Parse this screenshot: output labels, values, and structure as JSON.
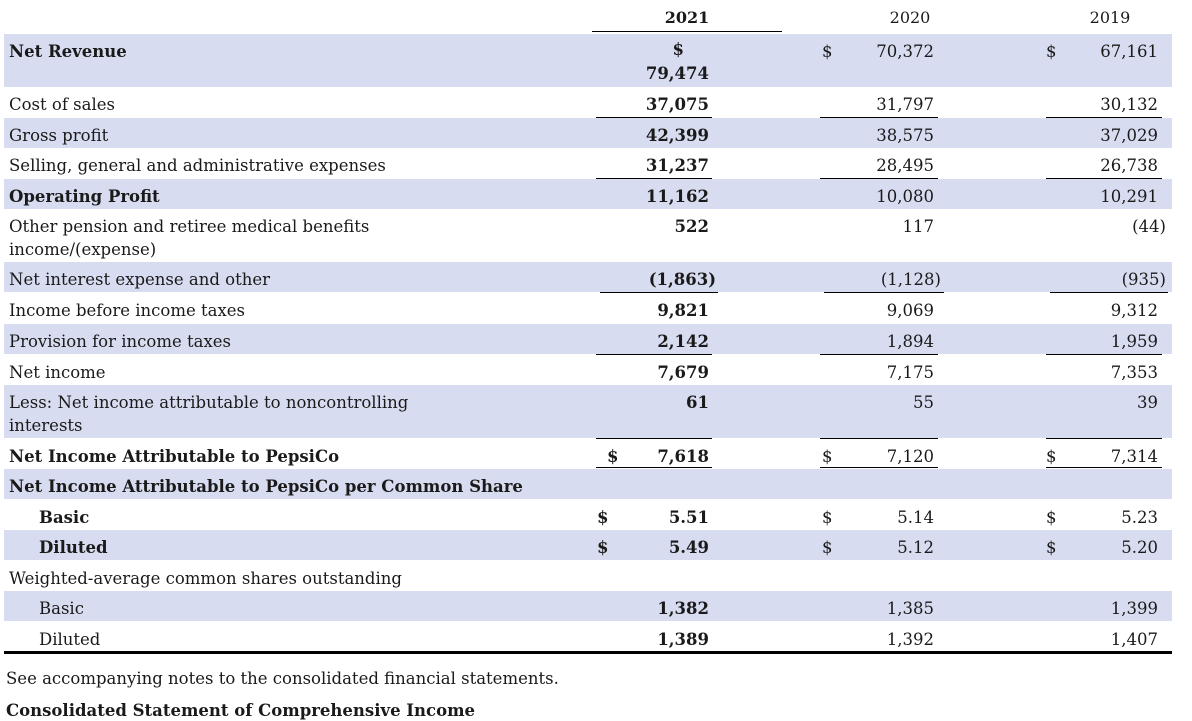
{
  "headers": {
    "y2021": "2021",
    "y2020": "2020",
    "y2019": "2019"
  },
  "rows": [
    {
      "label": "Net Revenue",
      "v2021": "79,474",
      "v2020": "70,372",
      "v2019": "67,161",
      "dollar": "$"
    },
    {
      "label": "Cost of sales",
      "v2021": "37,075",
      "v2020": "31,797",
      "v2019": "30,132"
    },
    {
      "label": "Gross profit",
      "v2021": "42,399",
      "v2020": "38,575",
      "v2019": "37,029"
    },
    {
      "label": "Selling, general and administrative expenses",
      "v2021": "31,237",
      "v2020": "28,495",
      "v2019": "26,738"
    },
    {
      "label": "Operating Profit",
      "v2021": "11,162",
      "v2020": "10,080",
      "v2019": "10,291"
    },
    {
      "label": "Other pension and retiree medical benefits income/(expense)",
      "v2021": "522",
      "v2020": "117",
      "v2019": "(44)"
    },
    {
      "label": "Net interest expense and other",
      "v2021": "(1,863)",
      "v2020": "(1,128)",
      "v2019": "(935)"
    },
    {
      "label": "Income before income taxes",
      "v2021": "9,821",
      "v2020": "9,069",
      "v2019": "9,312"
    },
    {
      "label": "Provision for income taxes",
      "v2021": "2,142",
      "v2020": "1,894",
      "v2019": "1,959"
    },
    {
      "label": "Net income",
      "v2021": "7,679",
      "v2020": "7,175",
      "v2019": "7,353"
    },
    {
      "label": "Less: Net income attributable to noncontrolling interests",
      "v2021": "61",
      "v2020": "55",
      "v2019": "39"
    },
    {
      "label": "Net Income Attributable to PepsiCo",
      "v2021": "7,618",
      "v2020": "7,120",
      "v2019": "7,314",
      "dollar": "$"
    },
    {
      "label": "Net Income Attributable to PepsiCo per Common Share"
    },
    {
      "label": "Basic",
      "v2021": "5.51",
      "v2020": "5.14",
      "v2019": "5.23",
      "dollar": "$"
    },
    {
      "label": "Diluted",
      "v2021": "5.49",
      "v2020": "5.12",
      "v2019": "5.20",
      "dollar": "$"
    },
    {
      "label": "Weighted-average common shares outstanding"
    },
    {
      "label": "Basic",
      "v2021": "1,382",
      "v2020": "1,385",
      "v2019": "1,399"
    },
    {
      "label": "Diluted",
      "v2021": "1,389",
      "v2020": "1,392",
      "v2019": "1,407"
    }
  ],
  "footnote": "See accompanying notes to the consolidated financial statements.",
  "next_title": "Consolidated Statement of Comprehensive Income",
  "colors": {
    "row_shade": "#d8dcf0"
  }
}
